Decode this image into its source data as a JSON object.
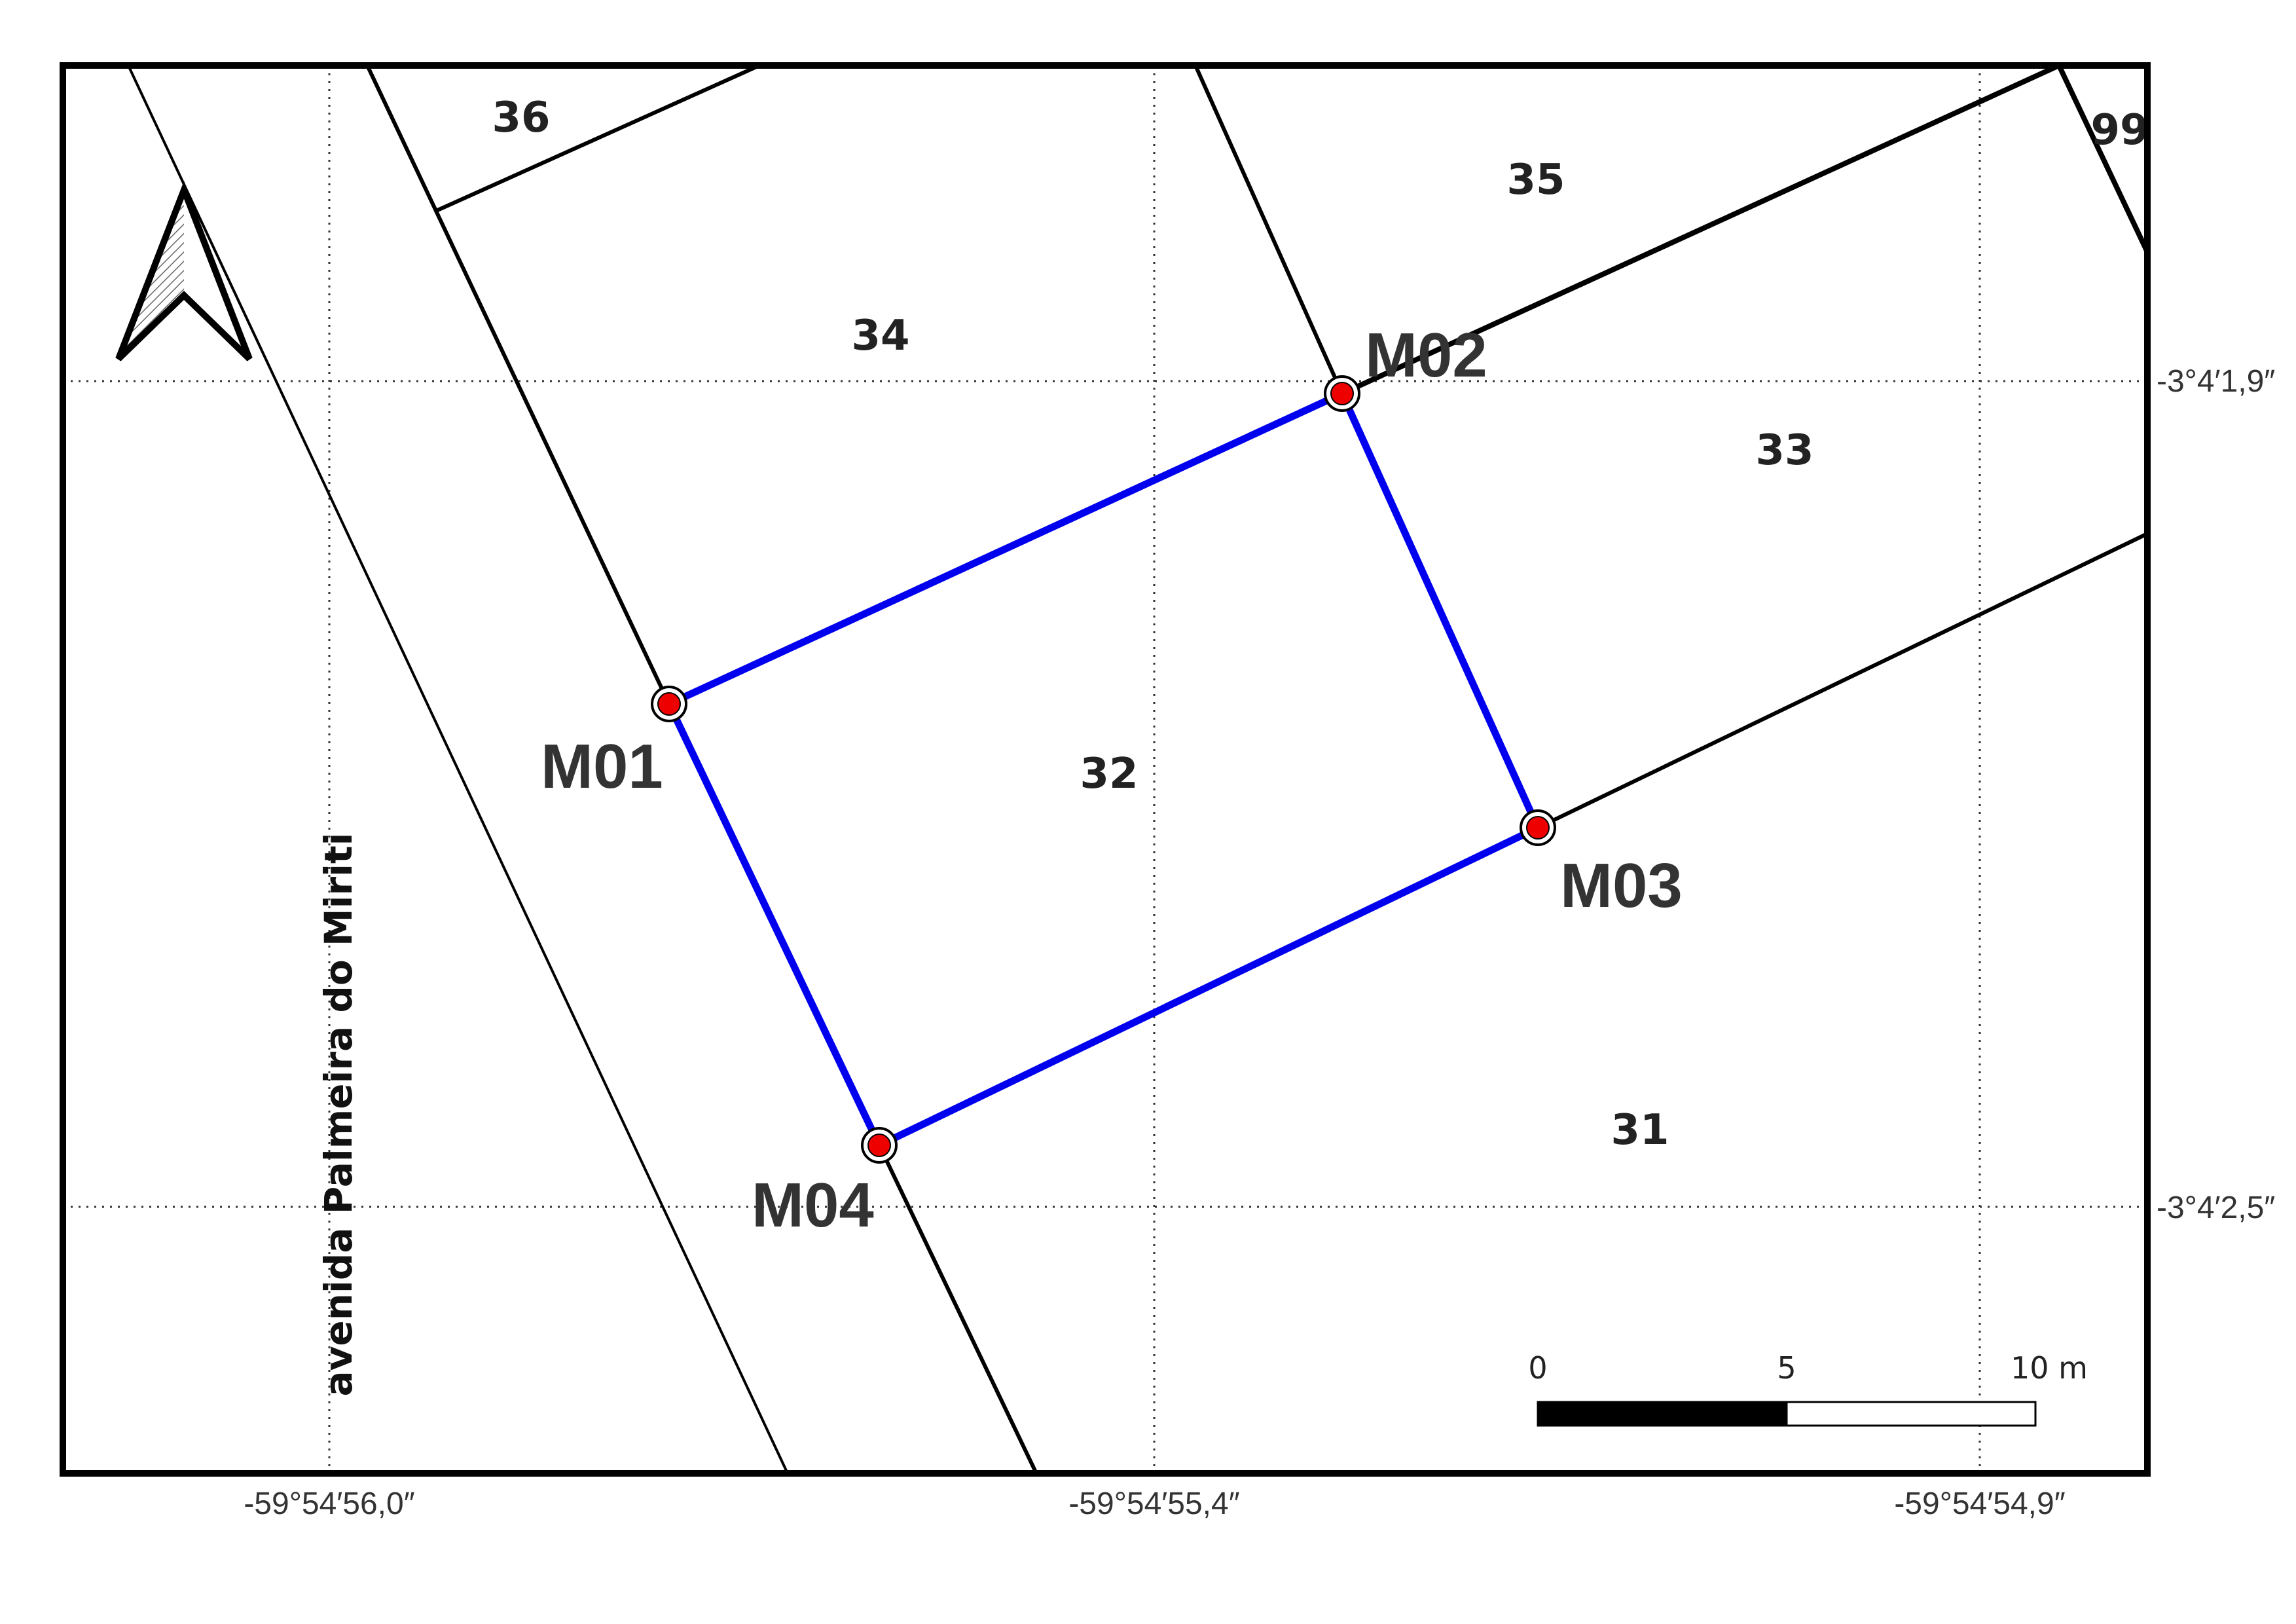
{
  "lots": [
    {
      "id": "lot-36",
      "label": "36"
    },
    {
      "id": "lot-35",
      "label": "35"
    },
    {
      "id": "lot-99",
      "label": "99"
    },
    {
      "id": "lot-34",
      "label": "34"
    },
    {
      "id": "lot-33",
      "label": "33"
    },
    {
      "id": "lot-32",
      "label": "32"
    },
    {
      "id": "lot-31",
      "label": "31"
    }
  ],
  "markers": [
    {
      "id": "M01",
      "label": "M01"
    },
    {
      "id": "M02",
      "label": "M02"
    },
    {
      "id": "M03",
      "label": "M03"
    },
    {
      "id": "M04",
      "label": "M04"
    }
  ],
  "road": {
    "label": "avenida Palmeira do Miriti"
  },
  "grid": {
    "latitudes": [
      "-3°4′1,9″",
      "-3°4′2,5″"
    ],
    "longitudes": [
      "-59°54′56,0″",
      "-59°54′55,4″",
      "-59°54′54,9″"
    ]
  },
  "scale_bar": {
    "labels": [
      "0",
      "5",
      "10 m"
    ],
    "max_value_m": 10
  },
  "north_arrow": {
    "icon": "north-arrow-icon"
  },
  "colors": {
    "parcel_outline": "#0000ee",
    "marker_fill": "#ee0000",
    "frame": "#000000"
  }
}
